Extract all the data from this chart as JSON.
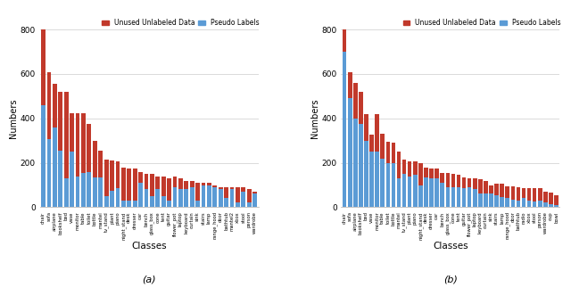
{
  "chart_a": {
    "categories": [
      "chair",
      "sofa",
      "airplane",
      "bookshelf",
      "bed",
      "vase",
      "monitor",
      "table",
      "toilet",
      "bottle",
      "mantel",
      "tv_stand",
      "plant",
      "piano",
      "night_stand",
      "desk",
      "dresser",
      "car",
      "bench",
      "glass_box",
      "cone",
      "tent",
      "guitar",
      "flower_pot",
      "laptop",
      "keyboard",
      "curtain",
      "sink",
      "stairs",
      "lamp",
      "range_hood",
      "door",
      "bathtub",
      "mantel2",
      "xbox",
      "stool",
      "person",
      "wardrobe"
    ],
    "pseudo": [
      460,
      305,
      360,
      255,
      130,
      250,
      140,
      155,
      160,
      135,
      135,
      50,
      75,
      85,
      30,
      30,
      30,
      110,
      80,
      50,
      80,
      50,
      30,
      90,
      80,
      80,
      90,
      30,
      100,
      100,
      90,
      80,
      40,
      80,
      20,
      70,
      20,
      60
    ],
    "unused": [
      340,
      305,
      195,
      265,
      390,
      175,
      285,
      270,
      215,
      165,
      120,
      165,
      135,
      120,
      150,
      145,
      145,
      50,
      70,
      100,
      60,
      90,
      100,
      50,
      50,
      40,
      30,
      80,
      10,
      10,
      10,
      10,
      50,
      10,
      70,
      20,
      60,
      10
    ]
  },
  "chart_b": {
    "categories": [
      "chair",
      "sofa",
      "airplane",
      "bookshelf",
      "bed",
      "vase",
      "monitor",
      "table",
      "toilet",
      "bottle",
      "mantel",
      "tv_stand",
      "plant",
      "piano",
      "night_stand",
      "desk",
      "dresser",
      "car",
      "bench",
      "glass_box",
      "cone",
      "tent",
      "guitar",
      "flower_pot",
      "laptop",
      "keyboard",
      "curtain",
      "sink",
      "stairs",
      "lamp",
      "range_hood",
      "door",
      "bathtub",
      "radio",
      "xbox",
      "stool",
      "person",
      "wardrobe",
      "cup",
      "bowl"
    ],
    "pseudo": [
      700,
      490,
      400,
      375,
      300,
      250,
      250,
      220,
      200,
      200,
      130,
      150,
      140,
      145,
      100,
      135,
      130,
      130,
      110,
      90,
      90,
      90,
      85,
      90,
      80,
      60,
      60,
      60,
      55,
      45,
      40,
      35,
      30,
      40,
      30,
      25,
      30,
      20,
      15,
      10
    ],
    "unused": [
      100,
      120,
      160,
      145,
      120,
      75,
      170,
      110,
      95,
      90,
      120,
      65,
      65,
      60,
      100,
      45,
      45,
      45,
      45,
      65,
      60,
      55,
      50,
      40,
      50,
      65,
      60,
      40,
      50,
      60,
      55,
      60,
      60,
      45,
      55,
      60,
      55,
      50,
      50,
      45
    ]
  },
  "colors": {
    "unused": "#C1392B",
    "pseudo": "#5B9BD5"
  },
  "ylabel": "Numbers",
  "xlabel": "Classes",
  "ylim": [
    0,
    800
  ],
  "yticks": [
    0,
    200,
    400,
    600,
    800
  ],
  "legend_labels": [
    "Unused Unlabeled Data",
    "Pseudo Labels"
  ],
  "subtitle_a": "(a)",
  "subtitle_b": "(b)"
}
